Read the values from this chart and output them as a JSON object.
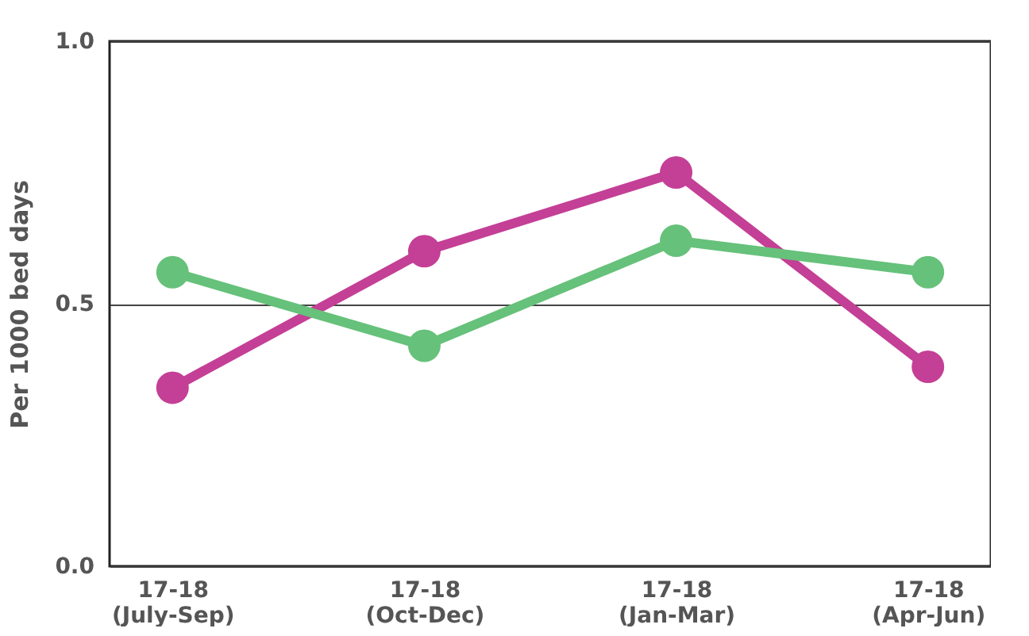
{
  "chart_data": {
    "type": "line",
    "ylabel": "Per 1000 bed days",
    "categories": [
      "17-18\n(July-Sep)",
      "17-18\n(Oct-Dec)",
      "17-18\n(Jan-Mar)",
      "17-18\n(Apr-Jun)"
    ],
    "series": [
      {
        "color": "#c43f96",
        "values": [
          0.34,
          0.6,
          0.75,
          0.38
        ]
      },
      {
        "color": "#66c17a",
        "values": [
          0.56,
          0.42,
          0.62,
          0.56
        ]
      }
    ],
    "ylim": [
      0,
      1
    ],
    "yticks": [
      {
        "value": 0,
        "label": "0.0"
      },
      0.5,
      {
        "value": 1,
        "label": "1.0"
      }
    ],
    "grid": "y",
    "marker": "circle"
  }
}
